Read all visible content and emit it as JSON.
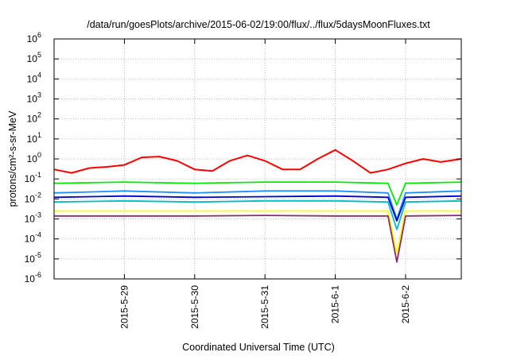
{
  "chart_data": {
    "type": "line",
    "title": "/data/run/goesPlots/archive/2015-06-02/19:00/flux/../flux/5daysMoonFluxes.txt",
    "xlabel": "Coordinated Universal Time (UTC)",
    "ylabel": "protons/cm²-s-sr-MeV",
    "yscale": "log",
    "ylim": [
      1e-06,
      1000000.0
    ],
    "y_ticks": [
      {
        "base": "10",
        "exp": "-6"
      },
      {
        "base": "10",
        "exp": "-5"
      },
      {
        "base": "10",
        "exp": "-4"
      },
      {
        "base": "10",
        "exp": "-3"
      },
      {
        "base": "10",
        "exp": "-2"
      },
      {
        "base": "10",
        "exp": "-1"
      },
      {
        "base": "10",
        "exp": "0"
      },
      {
        "base": "10",
        "exp": "1"
      },
      {
        "base": "10",
        "exp": "2"
      },
      {
        "base": "10",
        "exp": "3"
      },
      {
        "base": "10",
        "exp": "4"
      },
      {
        "base": "10",
        "exp": "5"
      },
      {
        "base": "10",
        "exp": "6"
      }
    ],
    "xlim": [
      "2015-05-28 00:00",
      "2015-06-02 19:00"
    ],
    "x_ticks": [
      "2015-5-29",
      "2015-5-30",
      "2015-5-31",
      "2015-6-1",
      "2015-6-2"
    ],
    "grid": true,
    "series": [
      {
        "color": "#ff0000",
        "x": [
          "2015-05-28 00:00",
          "2015-05-28 06:00",
          "2015-05-28 12:00",
          "2015-05-28 18:00",
          "2015-05-29 00:00",
          "2015-05-29 06:00",
          "2015-05-29 12:00",
          "2015-05-29 18:00",
          "2015-05-30 00:00",
          "2015-05-30 06:00",
          "2015-05-30 12:00",
          "2015-05-30 18:00",
          "2015-05-31 00:00",
          "2015-05-31 06:00",
          "2015-05-31 12:00",
          "2015-05-31 18:00",
          "2015-06-01 00:00",
          "2015-06-01 06:00",
          "2015-06-01 12:00",
          "2015-06-01 18:00",
          "2015-06-02 00:00",
          "2015-06-02 06:00",
          "2015-06-02 12:00",
          "2015-06-02 19:00"
        ],
        "values": [
          0.3,
          0.2,
          0.35,
          0.4,
          0.5,
          1.2,
          1.3,
          0.8,
          0.3,
          0.25,
          0.8,
          1.5,
          0.8,
          0.3,
          0.3,
          1.0,
          2.8,
          0.8,
          0.2,
          0.3,
          0.6,
          1.0,
          0.7,
          1.0
        ]
      },
      {
        "color": "#00ee00",
        "x": [
          "2015-05-28 00:00",
          "2015-05-29 00:00",
          "2015-05-30 00:00",
          "2015-05-31 00:00",
          "2015-06-01 00:00",
          "2015-06-01 18:00",
          "2015-06-01 21:00",
          "2015-06-02 00:00",
          "2015-06-02 19:00"
        ],
        "values": [
          0.06,
          0.07,
          0.06,
          0.07,
          0.07,
          0.06,
          0.005,
          0.06,
          0.07
        ]
      },
      {
        "color": "#1e90ff",
        "x": [
          "2015-05-28 00:00",
          "2015-05-29 00:00",
          "2015-05-30 00:00",
          "2015-05-31 00:00",
          "2015-06-01 00:00",
          "2015-06-01 18:00",
          "2015-06-01 21:00",
          "2015-06-02 00:00",
          "2015-06-02 19:00"
        ],
        "values": [
          0.02,
          0.025,
          0.02,
          0.025,
          0.025,
          0.02,
          0.001,
          0.02,
          0.025
        ]
      },
      {
        "color": "#0000cc",
        "x": [
          "2015-05-28 00:00",
          "2015-05-29 00:00",
          "2015-05-30 00:00",
          "2015-05-31 00:00",
          "2015-06-01 00:00",
          "2015-06-01 18:00",
          "2015-06-01 21:00",
          "2015-06-02 00:00",
          "2015-06-02 19:00"
        ],
        "values": [
          0.012,
          0.014,
          0.012,
          0.013,
          0.014,
          0.012,
          0.0008,
          0.012,
          0.014
        ]
      },
      {
        "color": "#00bbcc",
        "x": [
          "2015-05-28 00:00",
          "2015-05-29 00:00",
          "2015-05-30 00:00",
          "2015-05-31 00:00",
          "2015-06-01 00:00",
          "2015-06-01 18:00",
          "2015-06-01 21:00",
          "2015-06-02 00:00",
          "2015-06-02 19:00"
        ],
        "values": [
          0.007,
          0.008,
          0.007,
          0.008,
          0.008,
          0.007,
          0.0003,
          0.007,
          0.008
        ]
      },
      {
        "color": "#ffff00",
        "x": [
          "2015-05-28 00:00",
          "2015-05-29 00:00",
          "2015-05-30 00:00",
          "2015-05-31 00:00",
          "2015-06-01 00:00",
          "2015-06-01 18:00",
          "2015-06-01 21:00",
          "2015-06-02 00:00",
          "2015-06-02 19:00"
        ],
        "values": [
          0.0025,
          0.0025,
          0.0025,
          0.0025,
          0.0025,
          0.0025,
          2e-05,
          0.0025,
          0.0025
        ]
      },
      {
        "color": "#8b2a6a",
        "x": [
          "2015-05-28 00:00",
          "2015-05-29 00:00",
          "2015-05-30 00:00",
          "2015-05-31 00:00",
          "2015-06-01 00:00",
          "2015-06-01 18:00",
          "2015-06-01 21:00",
          "2015-06-02 00:00",
          "2015-06-02 19:00"
        ],
        "values": [
          0.0014,
          0.0014,
          0.0014,
          0.0015,
          0.0014,
          0.0014,
          7e-06,
          0.0014,
          0.0015
        ]
      }
    ]
  }
}
